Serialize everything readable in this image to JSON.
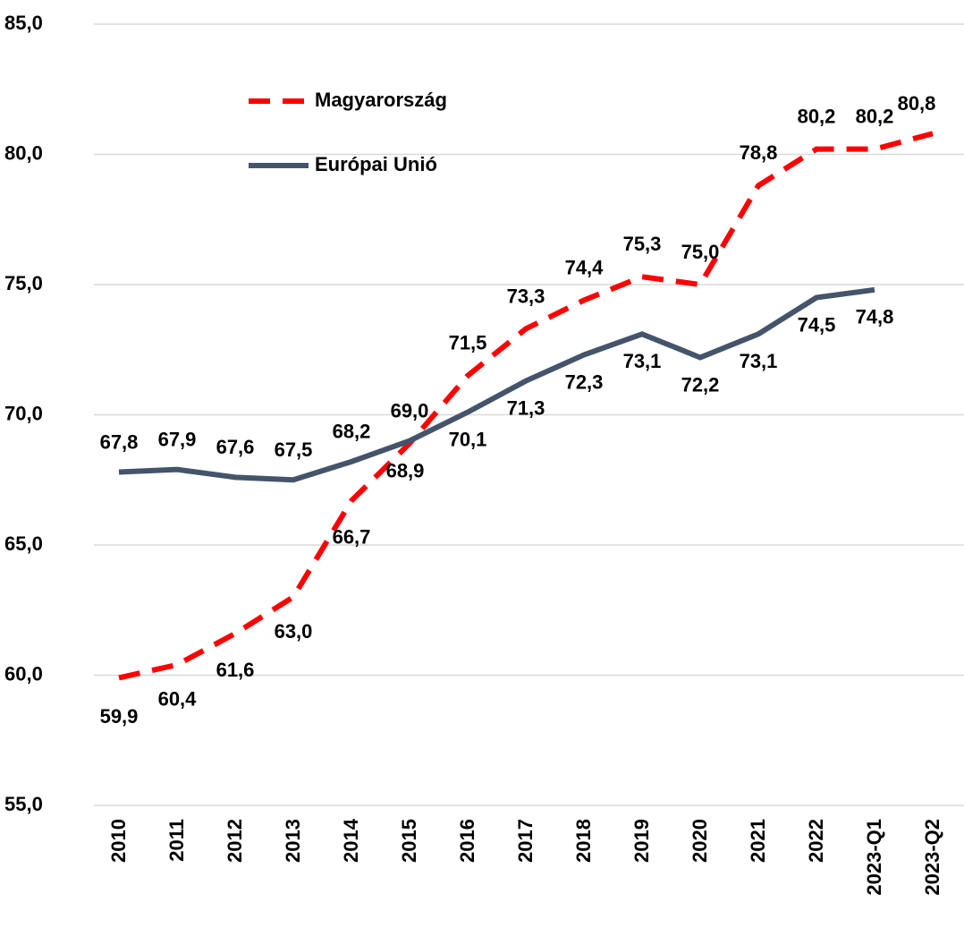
{
  "chart_data": {
    "type": "line",
    "categories": [
      "2010",
      "2011",
      "2012",
      "2013",
      "2014",
      "2015",
      "2016",
      "2017",
      "2018",
      "2019",
      "2020",
      "2021",
      "2022",
      "2023-Q1",
      "2023-Q2"
    ],
    "series": [
      {
        "name": "Magyarország",
        "color": "#ff0000",
        "dashed": true,
        "values": [
          59.9,
          60.4,
          61.6,
          63.0,
          66.7,
          68.9,
          71.5,
          73.3,
          74.4,
          75.3,
          75.0,
          78.8,
          80.2,
          80.2,
          80.8
        ],
        "value_labels": [
          "59,9",
          "60,4",
          "61,6",
          "63,0",
          "66,7",
          "68,9",
          "71,5",
          "73,3",
          "74,4",
          "75,3",
          "75,0",
          "78,8",
          "80,2",
          "80,2",
          "80,8"
        ]
      },
      {
        "name": "Európai Unió",
        "color": "#44546a",
        "dashed": false,
        "values": [
          67.8,
          67.9,
          67.6,
          67.5,
          68.2,
          69.0,
          70.1,
          71.3,
          72.3,
          73.1,
          72.2,
          73.1,
          74.5,
          74.8,
          null
        ],
        "value_labels": [
          "67,8",
          "67,9",
          "67,6",
          "67,5",
          "68,2",
          "69,0",
          "70,1",
          "71,3",
          "72,3",
          "73,1",
          "72,2",
          "73,1",
          "74,5",
          "74,8",
          null
        ]
      }
    ],
    "ylim": [
      55,
      85
    ],
    "yticks": [
      {
        "value": 55,
        "label": "55,0"
      },
      {
        "value": 60,
        "label": "60,0"
      },
      {
        "value": 65,
        "label": "65,0"
      },
      {
        "value": 70,
        "label": "70,0"
      },
      {
        "value": 75,
        "label": "75,0"
      },
      {
        "value": 80,
        "label": "80,0"
      },
      {
        "value": 85,
        "label": "85,0"
      }
    ],
    "grid": true,
    "legend": "upper left"
  }
}
